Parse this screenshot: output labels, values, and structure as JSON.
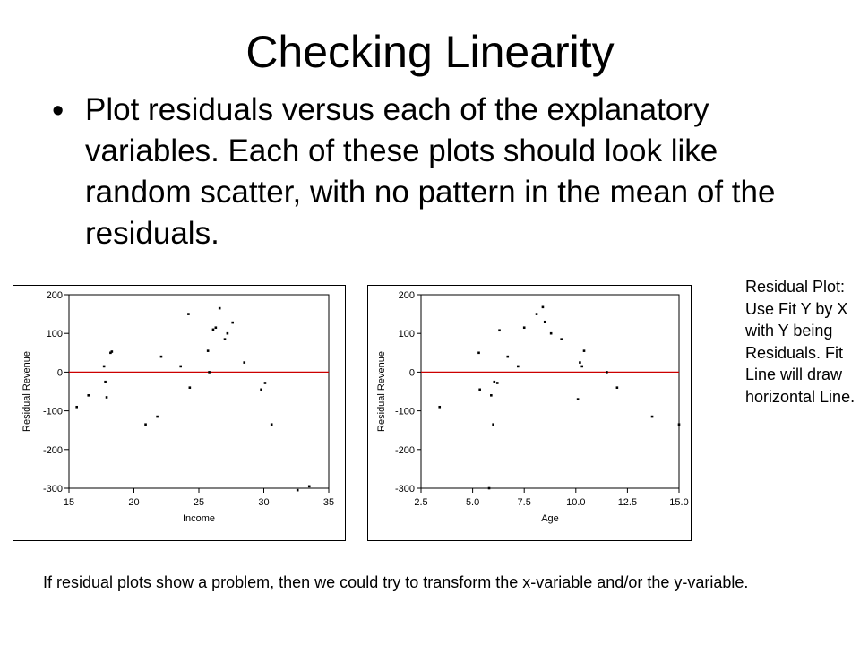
{
  "title": "Checking Linearity",
  "bullet": {
    "symbol": "•",
    "text": "Plot residuals versus each of the explanatory variables.  Each of these plots should look like random scatter, with no pattern in the mean of the residuals."
  },
  "side_note": "Residual Plot: Use Fit Y by X with Y being Residuals. Fit Line will draw horizontal Line.",
  "footer_note": "If residual plots show a problem, then we could try to transform the x-variable and/or the y-variable.",
  "colors": {
    "fit_line": "#cc0000",
    "point": "#000000",
    "axis": "#000000"
  },
  "chart_data": [
    {
      "type": "scatter",
      "title": "",
      "xlabel": "Income",
      "ylabel": "Residual Revenue",
      "xlim": [
        15,
        35
      ],
      "ylim": [
        -300,
        200
      ],
      "xticks": [
        15,
        20,
        25,
        30,
        35
      ],
      "xtick_labels": [
        "15",
        "20",
        "25",
        "30",
        "35"
      ],
      "yticks": [
        200,
        100,
        0,
        -100,
        -200,
        -300
      ],
      "ytick_labels": [
        "200",
        "100",
        "0",
        "-100",
        "-200",
        "-300"
      ],
      "fit_line_y": 0,
      "points": [
        [
          15.6,
          -90
        ],
        [
          16.5,
          -60
        ],
        [
          17.7,
          15
        ],
        [
          17.8,
          -25
        ],
        [
          17.9,
          -65
        ],
        [
          18.2,
          50
        ],
        [
          18.3,
          53
        ],
        [
          20.9,
          -135
        ],
        [
          21.8,
          -115
        ],
        [
          22.1,
          40
        ],
        [
          23.6,
          15
        ],
        [
          24.2,
          150
        ],
        [
          24.3,
          -40
        ],
        [
          25.7,
          55
        ],
        [
          25.8,
          0
        ],
        [
          26.1,
          110
        ],
        [
          26.3,
          115
        ],
        [
          26.6,
          165
        ],
        [
          27.0,
          85
        ],
        [
          27.2,
          100
        ],
        [
          27.6,
          128
        ],
        [
          28.5,
          25
        ],
        [
          29.8,
          -45
        ],
        [
          30.1,
          -28
        ],
        [
          30.6,
          -135
        ],
        [
          32.6,
          -305
        ],
        [
          33.5,
          -295
        ]
      ]
    },
    {
      "type": "scatter",
      "title": "",
      "xlabel": "Age",
      "ylabel": "Residual Revenue",
      "xlim": [
        2.5,
        15.0
      ],
      "ylim": [
        -300,
        200
      ],
      "xticks": [
        2.5,
        5.0,
        7.5,
        10.0,
        12.5,
        15.0
      ],
      "xtick_labels": [
        "2.5",
        "5.0",
        "7.5",
        "10.0",
        "12.5",
        "15.0"
      ],
      "yticks": [
        200,
        100,
        0,
        -100,
        -200,
        -300
      ],
      "ytick_labels": [
        "200",
        "100",
        "0",
        "-100",
        "-200",
        "-300"
      ],
      "fit_line_y": 0,
      "points": [
        [
          3.4,
          -90
        ],
        [
          5.3,
          50
        ],
        [
          5.35,
          -45
        ],
        [
          5.8,
          -300
        ],
        [
          5.9,
          -60
        ],
        [
          6.0,
          -135
        ],
        [
          6.05,
          -25
        ],
        [
          6.2,
          -28
        ],
        [
          6.3,
          108
        ],
        [
          6.7,
          40
        ],
        [
          7.2,
          15
        ],
        [
          7.5,
          115
        ],
        [
          8.1,
          150
        ],
        [
          8.4,
          168
        ],
        [
          8.5,
          130
        ],
        [
          8.8,
          100
        ],
        [
          9.3,
          85
        ],
        [
          10.1,
          -70
        ],
        [
          10.2,
          25
        ],
        [
          10.3,
          15
        ],
        [
          10.4,
          55
        ],
        [
          11.5,
          0
        ],
        [
          12.0,
          -40
        ],
        [
          13.7,
          -115
        ],
        [
          15.0,
          -135
        ]
      ]
    }
  ]
}
